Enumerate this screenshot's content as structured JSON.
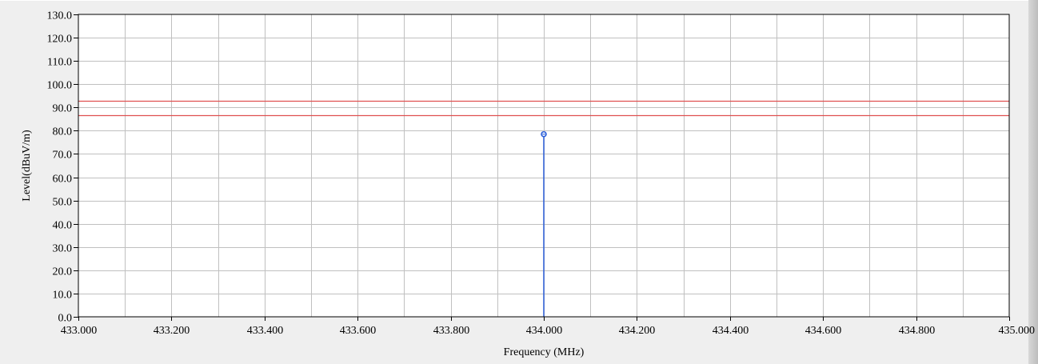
{
  "chart_data": {
    "type": "line",
    "xlabel": "Frequency (MHz)",
    "ylabel": "Level(dBuV/m)",
    "xlim": [
      433.0,
      435.0
    ],
    "ylim": [
      0.0,
      130.0
    ],
    "x_ticks": [
      433.0,
      433.2,
      433.4,
      433.6,
      433.8,
      434.0,
      434.2,
      434.4,
      434.6,
      434.8,
      435.0
    ],
    "x_tick_labels": [
      "433.000",
      "433.200",
      "433.400",
      "433.600",
      "433.800",
      "434.000",
      "434.200",
      "434.400",
      "434.600",
      "434.800",
      "435.000"
    ],
    "x_minor_grid": [
      433.1,
      433.3,
      433.5,
      433.7,
      433.9,
      434.1,
      434.3,
      434.5,
      434.7,
      434.9
    ],
    "y_ticks": [
      0,
      10,
      20,
      30,
      40,
      50,
      60,
      70,
      80,
      90,
      100,
      110,
      120,
      130
    ],
    "y_tick_labels": [
      "0.0",
      "10.0",
      "20.0",
      "30.0",
      "40.0",
      "50.0",
      "60.0",
      "70.0",
      "80.0",
      "90.0",
      "100.0",
      "110.0",
      "120.0",
      "130.0"
    ],
    "grid": true,
    "limit_lines": [
      {
        "y": 92.8,
        "color": "#e05050"
      },
      {
        "y": 86.8,
        "color": "#e05050"
      }
    ],
    "series": [
      {
        "x": [
          434.0
        ],
        "y": [
          78.5
        ],
        "style": "stem",
        "marker": "circle",
        "color": "#2b5fd9"
      }
    ],
    "colors": {
      "grid": "#c0c0c0",
      "plot_background": "#ffffff",
      "frame_background": "#efefef"
    }
  }
}
